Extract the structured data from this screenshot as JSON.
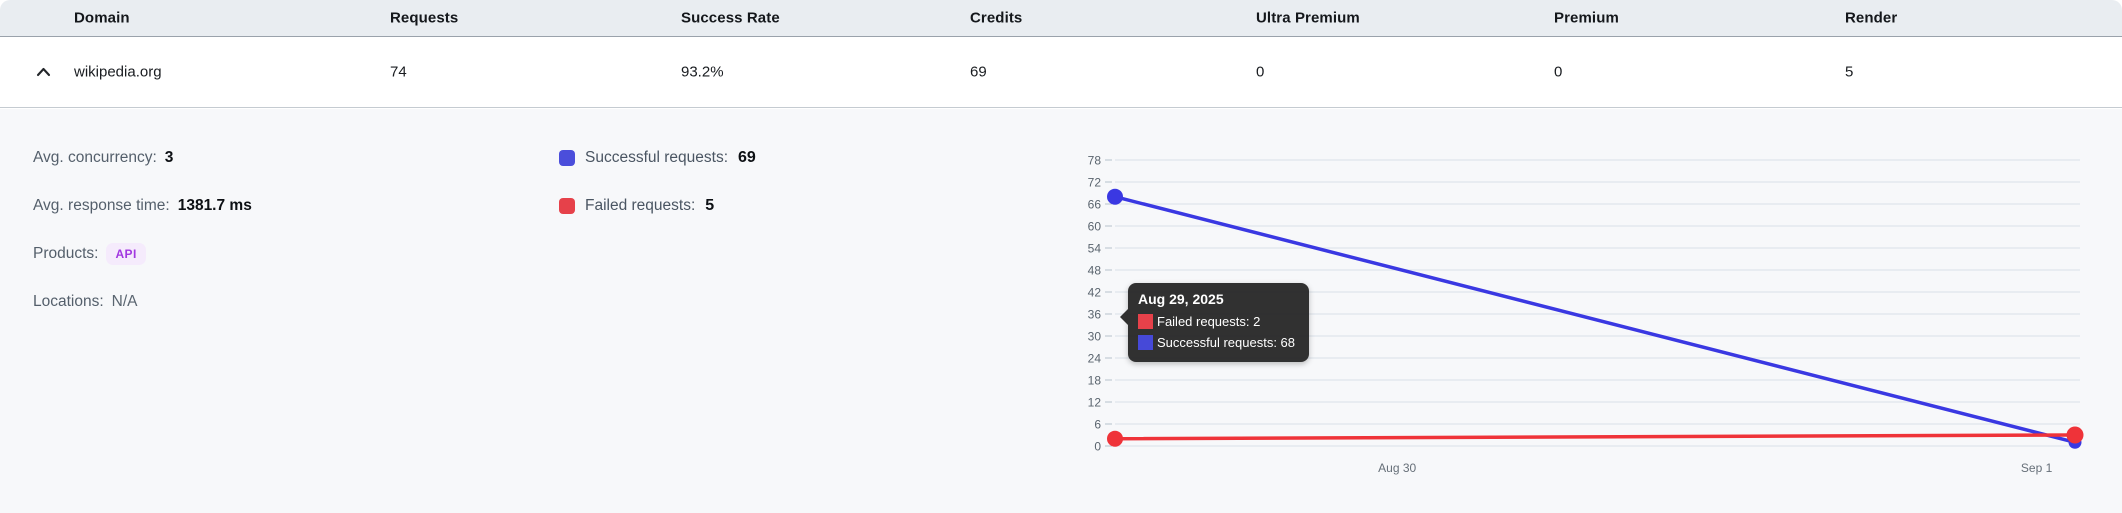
{
  "table": {
    "columns": [
      {
        "label": "Domain"
      },
      {
        "label": "Requests"
      },
      {
        "label": "Success Rate"
      },
      {
        "label": "Credits"
      },
      {
        "label": "Ultra Premium"
      },
      {
        "label": "Premium"
      },
      {
        "label": "Render"
      }
    ],
    "row": {
      "domain": "wikipedia.org",
      "requests": "74",
      "success_rate": "93.2%",
      "credits": "69",
      "ultra_premium": "0",
      "premium": "0",
      "render": "5",
      "expanded": true
    }
  },
  "details": [
    {
      "label": "Avg. concurrency:",
      "value": "3"
    },
    {
      "label": "Avg. response time:",
      "value": "1381.7 ms"
    },
    {
      "label": "Products:",
      "value": "API"
    },
    {
      "label": "Locations:",
      "value": "N/A"
    }
  ],
  "legend": {
    "items": [
      {
        "label": "Successful requests:",
        "value": "69",
        "color": "#4b4edb"
      },
      {
        "label": "Failed requests:",
        "value": "5",
        "color": "#e6414a"
      }
    ]
  },
  "chart_data": {
    "type": "line",
    "x": [
      "Aug 29",
      "Sep 1"
    ],
    "series": [
      {
        "name": "Successful requests",
        "color": "#3a38e2",
        "values": [
          68,
          1
        ]
      },
      {
        "name": "Failed requests",
        "color": "#ef3339",
        "values": [
          2,
          3
        ]
      }
    ],
    "title": "",
    "xlabel": "",
    "ylabel": "",
    "ylim": [
      0,
      78
    ],
    "ytick_step": 6,
    "x_tick_labels": [
      "Aug 30",
      "Sep 1"
    ],
    "x_tick_pos": [
      0.294,
      0.96
    ],
    "grid": true,
    "legend_position": "outside-left",
    "tooltip": {
      "title": "Aug 29, 2025",
      "rows": [
        {
          "text": "Failed requests: 2",
          "color": "#e6414a"
        },
        {
          "text": "Successful requests: 68",
          "color": "#4649d8"
        }
      ]
    }
  }
}
